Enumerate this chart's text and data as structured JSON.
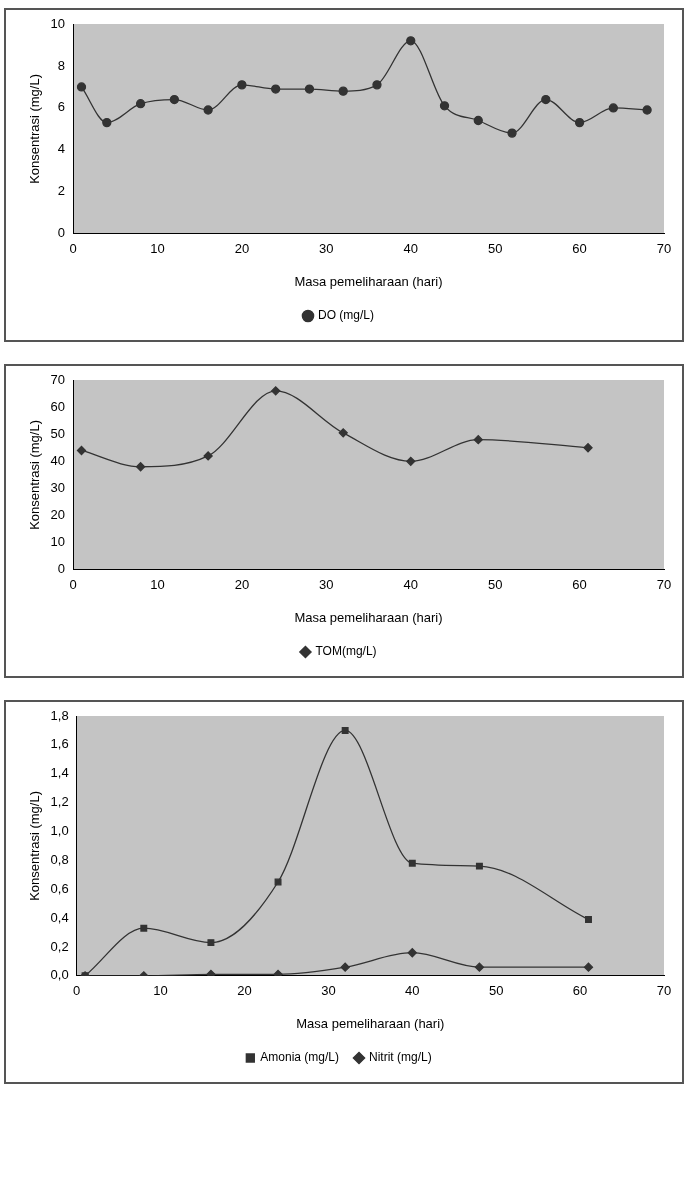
{
  "chart_data": [
    {
      "type": "line",
      "xlabel": "Masa pemeliharaan (hari)",
      "ylabel": "Konsentrasi (mg/L)",
      "xlim": [
        0,
        70
      ],
      "xticks": [
        0,
        10,
        20,
        30,
        40,
        50,
        60,
        70
      ],
      "ylim": [
        0,
        10
      ],
      "yticks": [
        0,
        2,
        4,
        6,
        8,
        10
      ],
      "legend": "bottom",
      "grid": false,
      "marker": "circle",
      "series": [
        {
          "name": "DO (mg/L)",
          "color": "#333333",
          "x": [
            1,
            4,
            8,
            12,
            16,
            20,
            24,
            28,
            32,
            36,
            40,
            44,
            48,
            52,
            56,
            60,
            64,
            68
          ],
          "values": [
            7.0,
            5.3,
            6.2,
            6.4,
            5.9,
            7.1,
            6.9,
            6.9,
            6.8,
            7.1,
            9.2,
            6.1,
            5.4,
            4.8,
            6.4,
            5.3,
            6.0,
            5.9
          ]
        }
      ]
    },
    {
      "type": "line",
      "xlabel": "Masa pemeliharaan (hari)",
      "ylabel": "Konsentrasi (mg/L)",
      "xlim": [
        0,
        70
      ],
      "xticks": [
        0,
        10,
        20,
        30,
        40,
        50,
        60,
        70
      ],
      "ylim": [
        0,
        70
      ],
      "yticks": [
        0,
        10,
        20,
        30,
        40,
        50,
        60,
        70
      ],
      "legend": "bottom",
      "grid": false,
      "marker": "diamond",
      "series": [
        {
          "name": "TOM(mg/L)",
          "color": "#333333",
          "x": [
            1,
            8,
            16,
            24,
            32,
            40,
            48,
            61
          ],
          "values": [
            44,
            38,
            42,
            66,
            50.5,
            40,
            48,
            45
          ]
        }
      ]
    },
    {
      "type": "line",
      "xlabel": "Masa pemeliharaan (hari)",
      "ylabel": "Konsentrasi (mg/L)",
      "xlim": [
        0,
        70
      ],
      "xticks": [
        0,
        10,
        20,
        30,
        40,
        50,
        60,
        70
      ],
      "ylim": [
        0,
        1.8
      ],
      "yticks": [
        {
          "value": 0,
          "label": "0,0"
        },
        {
          "value": 0.2,
          "label": "0,2"
        },
        {
          "value": 0.4,
          "label": "0,4"
        },
        {
          "value": 0.6,
          "label": "0,6"
        },
        {
          "value": 0.8,
          "label": "0,8"
        },
        {
          "value": 1.0,
          "label": "1,0"
        },
        {
          "value": 1.2,
          "label": "1,2"
        },
        {
          "value": 1.4,
          "label": "1,4"
        },
        {
          "value": 1.6,
          "label": "1,6"
        },
        {
          "value": 1.8,
          "label": "1,8"
        }
      ],
      "legend": "bottom",
      "grid": false,
      "series": [
        {
          "name": "Amonia (mg/L)",
          "color": "#333333",
          "marker": "square",
          "x": [
            1,
            8,
            16,
            24,
            32,
            40,
            48,
            61
          ],
          "values": [
            0.0,
            0.33,
            0.23,
            0.65,
            1.7,
            0.78,
            0.76,
            0.39
          ]
        },
        {
          "name": "Nitrit (mg/L)",
          "color": "#333333",
          "marker": "diamond",
          "x": [
            1,
            8,
            16,
            24,
            32,
            40,
            48,
            61
          ],
          "values": [
            0.0,
            0.0,
            0.01,
            0.01,
            0.06,
            0.16,
            0.06,
            0.06
          ]
        }
      ]
    }
  ]
}
